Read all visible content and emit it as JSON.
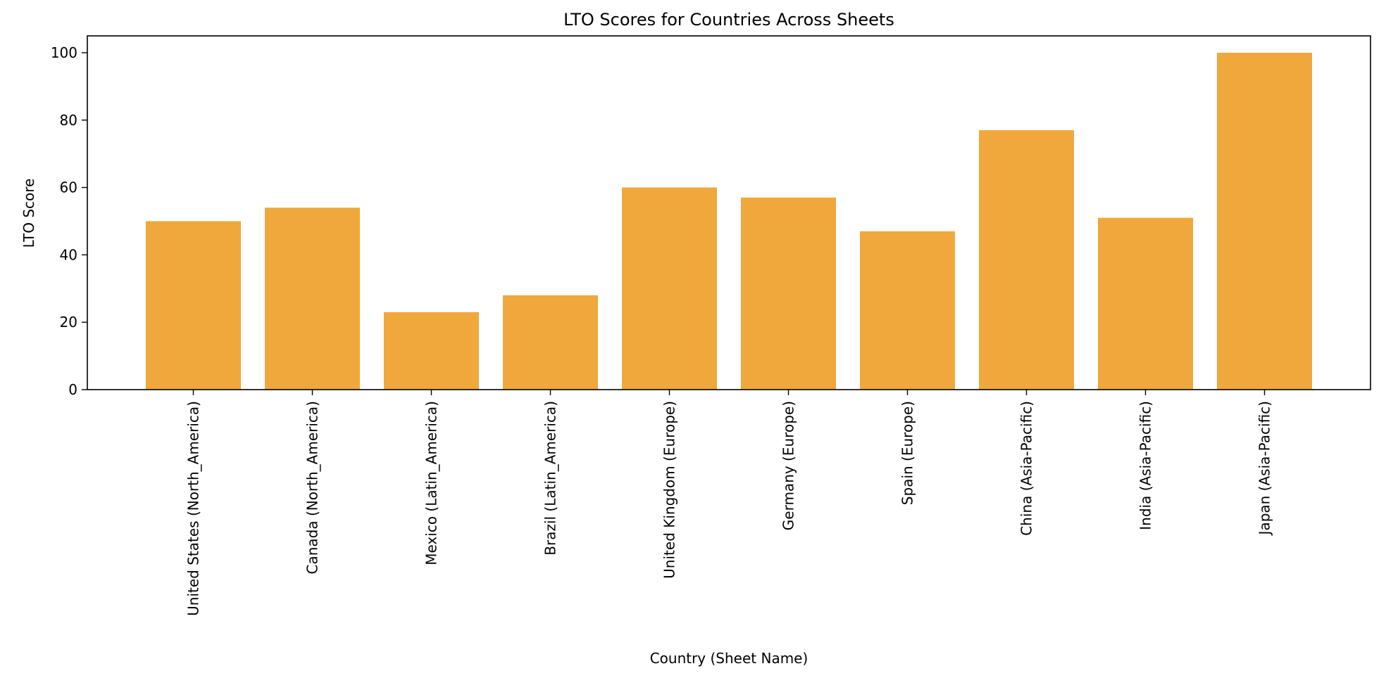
{
  "chart_data": {
    "type": "bar",
    "title": "LTO Scores for Countries Across Sheets",
    "xlabel": "Country (Sheet Name)",
    "ylabel": "LTO Score",
    "categories": [
      "United States (North_America)",
      "Canada (North_America)",
      "Mexico (Latin_America)",
      "Brazil (Latin_America)",
      "United Kingdom (Europe)",
      "Germany (Europe)",
      "Spain (Europe)",
      "China (Asia-Pacific)",
      "India (Asia-Pacific)",
      "Japan (Asia-Pacific)"
    ],
    "values": [
      50,
      54,
      23,
      28,
      60,
      57,
      47,
      77,
      51,
      100
    ],
    "ylim": [
      0,
      105
    ],
    "yticks": [
      0,
      20,
      40,
      60,
      80,
      100
    ],
    "grid": false,
    "legend": "none",
    "colors": {
      "bar": "#f0a83c",
      "axis": "#000000",
      "background": "#ffffff"
    }
  }
}
